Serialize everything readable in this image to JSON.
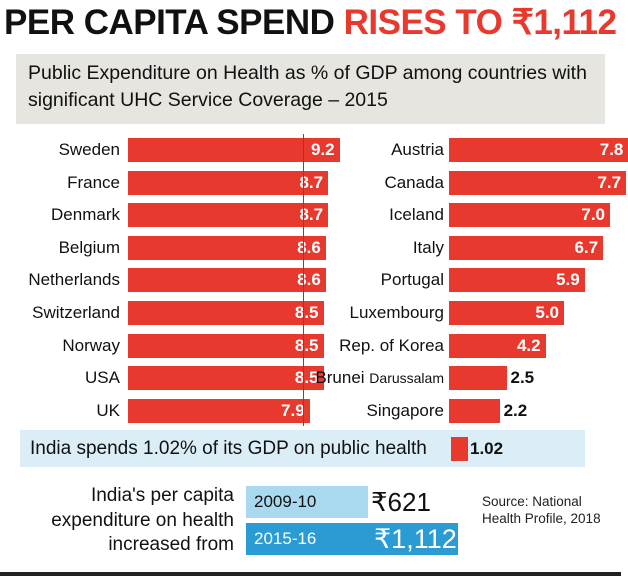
{
  "headline": {
    "part1": "PER CAPITA SPEND ",
    "part2": "RISES TO ₹1,112"
  },
  "subtitle": "Public Expenditure on Health as % of GDP among countries with significant UHC Service Coverage – 2015",
  "colors": {
    "bar": "#e8392f",
    "subtitle_bg": "#e6e5df",
    "india_bg": "#dbeef8",
    "period1": "#a9d9ef",
    "period2": "#2a9bd3"
  },
  "chart_data": {
    "type": "bar",
    "orientation": "horizontal",
    "title": "Public Expenditure on Health as % of GDP among countries with significant UHC Service Coverage – 2015",
    "unit": "% of GDP",
    "left_panel": {
      "categories": [
        "Sweden",
        "France",
        "Denmark",
        "Belgium",
        "Netherlands",
        "Switzerland",
        "Norway",
        "USA",
        "UK"
      ],
      "values": [
        9.2,
        8.7,
        8.7,
        8.6,
        8.6,
        8.5,
        8.5,
        8.5,
        7.9
      ],
      "labels": [
        "9.2",
        "8.7",
        "8.7",
        "8.6",
        "8.6",
        "8.5",
        "8.5",
        "8.5",
        "7.9"
      ]
    },
    "right_panel": {
      "categories": [
        "Austria",
        "Canada",
        "Iceland",
        "Italy",
        "Portugal",
        "Luxembourg",
        "Rep. of Korea",
        "Brunei Darussalam",
        "Singapore"
      ],
      "values": [
        7.8,
        7.7,
        7.0,
        6.7,
        5.9,
        5.0,
        4.2,
        2.5,
        2.2
      ],
      "labels": [
        "7.8",
        "7.7",
        "7.0",
        "6.7",
        "5.9",
        "5.0",
        "4.2",
        "2.5",
        "2.2"
      ]
    },
    "india": {
      "text": "India spends 1.02% of its GDP on public health",
      "value": 1.02,
      "label": "1.02"
    }
  },
  "per_capita": {
    "text": "India's per capita expenditure on health increased from",
    "periods": [
      {
        "period": "2009-10",
        "amount": "₹621"
      },
      {
        "period": "2015-16",
        "amount": "₹1,112"
      }
    ]
  },
  "source": "Source: National Health Profile, 2018"
}
